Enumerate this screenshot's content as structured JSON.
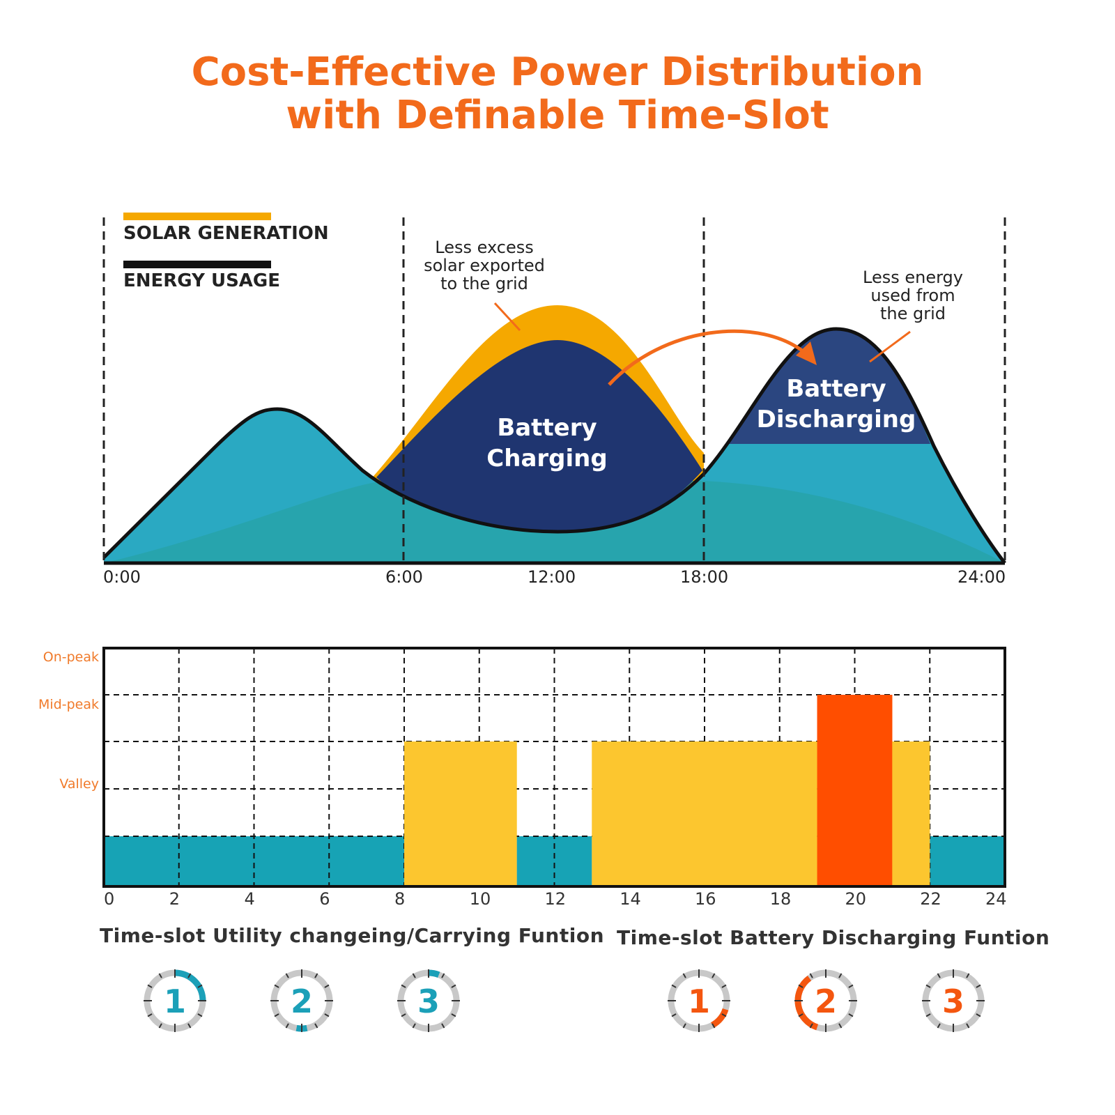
{
  "title": {
    "line1": "Cost-Effective Power Distribution",
    "line2": "with Definable Time-Slot"
  },
  "legend": {
    "solar": "SOLAR GENERATION",
    "usage": "ENERGY USAGE"
  },
  "colors": {
    "solar": "#f5a800",
    "usage": "#2aa9c2",
    "battery": "#1f3570",
    "accent": "#f26a1b",
    "tariff_low": "#17a3b5",
    "tariff_mid": "#fcc62f",
    "tariff_high": "#ff4e00"
  },
  "top_chart": {
    "x_ticks": [
      "0:00",
      "6:00",
      "12:00",
      "18:00",
      "24:00"
    ],
    "annotations": {
      "solar_excess": [
        "Less excess",
        "solar exported",
        "to the grid"
      ],
      "grid_use": [
        "Less energy",
        "used from",
        "the grid"
      ]
    },
    "charging": [
      "Battery",
      "Charging"
    ],
    "discharging": [
      "Battery",
      "Discharging"
    ]
  },
  "chart_data": {
    "type": "bar",
    "y_levels": [
      "Valley",
      "Mid-peak",
      "On-peak"
    ],
    "x_ticks": [
      "0",
      "2",
      "4",
      "6",
      "8",
      "10",
      "12",
      "14",
      "16",
      "18",
      "20",
      "22",
      "24"
    ],
    "xlim": [
      0,
      24
    ],
    "segments": [
      {
        "start": 0,
        "end": 8,
        "level": 1,
        "color": "#17a3b5"
      },
      {
        "start": 8,
        "end": 11,
        "level": 3,
        "color": "#fcc62f"
      },
      {
        "start": 11,
        "end": 13,
        "level": 1,
        "color": "#17a3b5"
      },
      {
        "start": 13,
        "end": 19,
        "level": 3,
        "color": "#fcc62f"
      },
      {
        "start": 19,
        "end": 21,
        "level": 4,
        "color": "#ff4e00"
      },
      {
        "start": 21,
        "end": 22,
        "level": 3,
        "color": "#fcc62f"
      },
      {
        "start": 22,
        "end": 24,
        "level": 1,
        "color": "#17a3b5"
      }
    ]
  },
  "captions": {
    "left": "Time-slot Utility changeing/Carrying Funtion",
    "right": "Time-slot Battery Discharging Funtion"
  },
  "slots": {
    "left": [
      {
        "n": "1",
        "from": 0,
        "to": 0.25
      },
      {
        "n": "2",
        "from": 0.47,
        "to": 0.53
      },
      {
        "n": "3",
        "from": 0,
        "to": 0.06
      }
    ],
    "right": [
      {
        "n": "1",
        "from": 0.3,
        "to": 0.42
      },
      {
        "n": "2",
        "from": 0.55,
        "to": 0.9
      },
      {
        "n": "3",
        "from": 0,
        "to": 0
      }
    ]
  }
}
